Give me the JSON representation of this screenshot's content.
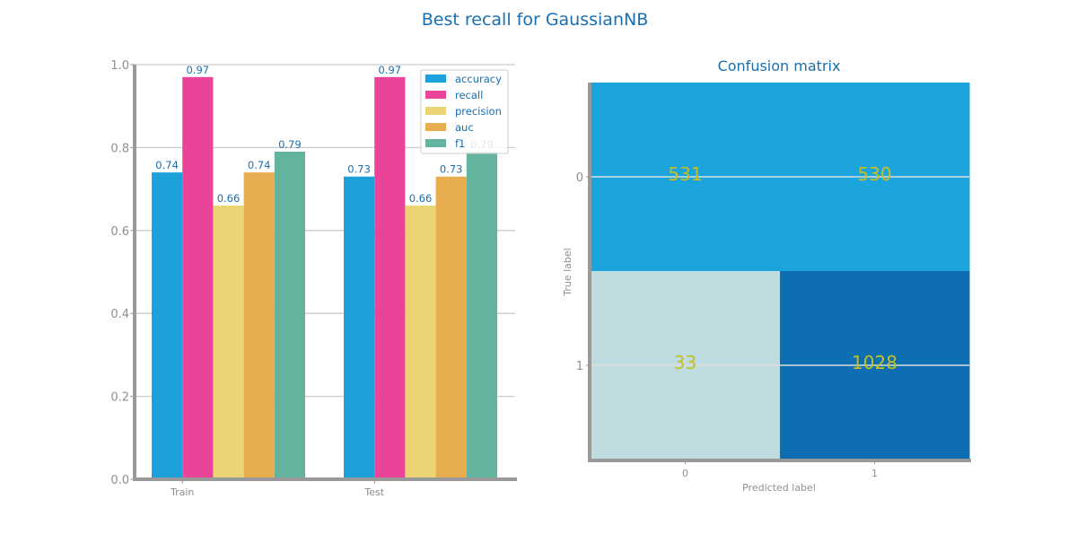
{
  "title": "Best recall for GaussianNB",
  "colors": {
    "accuracy": "#1ca1da",
    "recall": "#ea4499",
    "precision": "#ebd474",
    "auc": "#e8ad4e",
    "f1": "#63b39e",
    "title": "#1a6fb0",
    "annotation": "#c4c024",
    "cm_high": "#0d6fb2",
    "cm_mid": "#1ca4dc",
    "cm_low": "#bfdde1"
  },
  "chart_data": [
    {
      "type": "bar",
      "title": "",
      "categories": [
        "Train",
        "Test"
      ],
      "series": [
        {
          "name": "accuracy",
          "values": [
            0.74,
            0.73
          ],
          "labels": [
            "0.74",
            "0.73"
          ]
        },
        {
          "name": "recall",
          "values": [
            0.97,
            0.97
          ],
          "labels": [
            "0.97",
            "0.97"
          ]
        },
        {
          "name": "precision",
          "values": [
            0.66,
            0.66
          ],
          "labels": [
            "0.66",
            "0.66"
          ]
        },
        {
          "name": "auc",
          "values": [
            0.74,
            0.73
          ],
          "labels": [
            "0.74",
            "0.73"
          ]
        },
        {
          "name": "f1",
          "values": [
            0.79,
            0.79
          ],
          "labels": [
            "0.79",
            "0.79"
          ]
        }
      ],
      "ylim": [
        0.0,
        1.0
      ],
      "yticks": [
        "0.0",
        "0.2",
        "0.4",
        "0.6",
        "0.8",
        "1.0"
      ],
      "grid": true,
      "legend": "top-right"
    },
    {
      "type": "heatmap",
      "title": "Confusion matrix",
      "xlabel": "Predicted label",
      "ylabel": "True label",
      "xticks": [
        "0",
        "1"
      ],
      "yticks": [
        "0",
        "1"
      ],
      "values": [
        [
          531,
          530
        ],
        [
          33,
          1028
        ]
      ]
    }
  ]
}
